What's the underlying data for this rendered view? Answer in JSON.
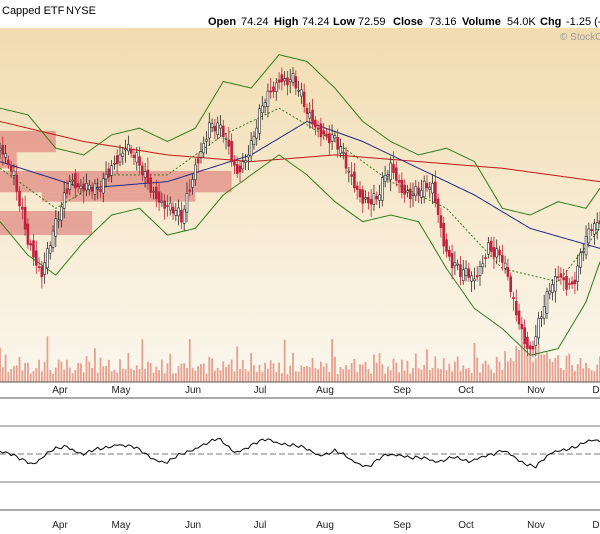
{
  "header": {
    "name": "Capped ETF",
    "exchange": "NYSE",
    "open_label": "Open",
    "open": "74.24",
    "high_label": "High",
    "high": "74.24",
    "low_label": "Low",
    "low": "72.59",
    "close_label": "Close",
    "close": "73.16",
    "volume_label": "Volume",
    "volume": "54.0K",
    "chg_label": "Chg",
    "chg": "-1.25 (-",
    "watermark": "© StockCh"
  },
  "colors": {
    "up": "#2a2a2a",
    "down": "#c0203a",
    "bollinger": "#2e7d1c",
    "ma_dotted": "#2e7d1c",
    "ma_blue": "#1f2a8a",
    "ma_red": "#c01818",
    "volume_zone": "#d96a6a",
    "volume_bar": "#e6a090",
    "indicator_line": "#000000"
  },
  "chart_data": {
    "type": "candlestick",
    "months": [
      "Apr",
      "May",
      "Jun",
      "Jul",
      "Aug",
      "Sep",
      "Oct",
      "Nov",
      "D"
    ],
    "price_series": [
      {
        "day": 0,
        "close": 77.5
      },
      {
        "day": 5,
        "close": 75.0
      },
      {
        "day": 10,
        "close": 71.0
      },
      {
        "day": 15,
        "close": 68.0
      },
      {
        "day": 20,
        "close": 71.5
      },
      {
        "day": 25,
        "close": 75.5
      },
      {
        "day": 30,
        "close": 74.5
      },
      {
        "day": 35,
        "close": 74.0
      },
      {
        "day": 40,
        "close": 76.5
      },
      {
        "day": 45,
        "close": 77.5
      },
      {
        "day": 50,
        "close": 76.0
      },
      {
        "day": 55,
        "close": 74.5
      },
      {
        "day": 60,
        "close": 73.0
      },
      {
        "day": 65,
        "close": 72.0
      },
      {
        "day": 70,
        "close": 76.5
      },
      {
        "day": 75,
        "close": 79.0
      },
      {
        "day": 80,
        "close": 78.5
      },
      {
        "day": 85,
        "close": 76.0
      },
      {
        "day": 90,
        "close": 77.5
      },
      {
        "day": 95,
        "close": 81.0
      },
      {
        "day": 100,
        "close": 83.0
      },
      {
        "day": 105,
        "close": 82.5
      },
      {
        "day": 110,
        "close": 80.0
      },
      {
        "day": 115,
        "close": 79.0
      },
      {
        "day": 120,
        "close": 78.0
      },
      {
        "day": 125,
        "close": 75.5
      },
      {
        "day": 130,
        "close": 74.0
      },
      {
        "day": 135,
        "close": 73.5
      },
      {
        "day": 140,
        "close": 76.0
      },
      {
        "day": 145,
        "close": 74.5
      },
      {
        "day": 150,
        "close": 74.0
      },
      {
        "day": 155,
        "close": 74.5
      },
      {
        "day": 160,
        "close": 70.0
      },
      {
        "day": 165,
        "close": 68.0
      },
      {
        "day": 170,
        "close": 67.5
      },
      {
        "day": 175,
        "close": 70.5
      },
      {
        "day": 180,
        "close": 69.0
      },
      {
        "day": 185,
        "close": 65.0
      },
      {
        "day": 190,
        "close": 62.5
      },
      {
        "day": 195,
        "close": 65.5
      },
      {
        "day": 200,
        "close": 68.0
      },
      {
        "day": 205,
        "close": 67.5
      },
      {
        "day": 210,
        "close": 70.5
      },
      {
        "day": 215,
        "close": 72.0
      }
    ],
    "bollinger_upper": [
      {
        "day": 0,
        "value": 80.5
      },
      {
        "day": 10,
        "value": 80.0
      },
      {
        "day": 20,
        "value": 77.5
      },
      {
        "day": 30,
        "value": 77.0
      },
      {
        "day": 40,
        "value": 78.5
      },
      {
        "day": 50,
        "value": 79.0
      },
      {
        "day": 60,
        "value": 78.0
      },
      {
        "day": 70,
        "value": 79.0
      },
      {
        "day": 80,
        "value": 82.5
      },
      {
        "day": 90,
        "value": 82.0
      },
      {
        "day": 100,
        "value": 84.5
      },
      {
        "day": 110,
        "value": 84.0
      },
      {
        "day": 120,
        "value": 82.0
      },
      {
        "day": 130,
        "value": 79.5
      },
      {
        "day": 140,
        "value": 78.0
      },
      {
        "day": 150,
        "value": 77.0
      },
      {
        "day": 160,
        "value": 77.5
      },
      {
        "day": 170,
        "value": 76.5
      },
      {
        "day": 180,
        "value": 73.0
      },
      {
        "day": 190,
        "value": 72.5
      },
      {
        "day": 200,
        "value": 73.5
      },
      {
        "day": 210,
        "value": 73.0
      },
      {
        "day": 215,
        "value": 74.5
      }
    ],
    "bollinger_lower": [
      {
        "day": 0,
        "value": 72.0
      },
      {
        "day": 10,
        "value": 69.5
      },
      {
        "day": 20,
        "value": 68.0
      },
      {
        "day": 30,
        "value": 70.5
      },
      {
        "day": 40,
        "value": 72.5
      },
      {
        "day": 50,
        "value": 73.0
      },
      {
        "day": 60,
        "value": 71.0
      },
      {
        "day": 70,
        "value": 71.5
      },
      {
        "day": 80,
        "value": 74.0
      },
      {
        "day": 90,
        "value": 75.5
      },
      {
        "day": 100,
        "value": 77.0
      },
      {
        "day": 110,
        "value": 75.5
      },
      {
        "day": 120,
        "value": 73.5
      },
      {
        "day": 130,
        "value": 72.0
      },
      {
        "day": 140,
        "value": 72.5
      },
      {
        "day": 150,
        "value": 72.0
      },
      {
        "day": 160,
        "value": 68.5
      },
      {
        "day": 170,
        "value": 65.5
      },
      {
        "day": 180,
        "value": 64.0
      },
      {
        "day": 190,
        "value": 62.0
      },
      {
        "day": 200,
        "value": 62.5
      },
      {
        "day": 210,
        "value": 66.0
      },
      {
        "day": 215,
        "value": 69.0
      }
    ],
    "ma_dotted": [
      {
        "day": 0,
        "value": 76.0
      },
      {
        "day": 20,
        "value": 73.0
      },
      {
        "day": 40,
        "value": 75.5
      },
      {
        "day": 60,
        "value": 75.5
      },
      {
        "day": 80,
        "value": 78.5
      },
      {
        "day": 100,
        "value": 80.5
      },
      {
        "day": 120,
        "value": 78.0
      },
      {
        "day": 140,
        "value": 75.0
      },
      {
        "day": 160,
        "value": 73.0
      },
      {
        "day": 180,
        "value": 68.5
      },
      {
        "day": 200,
        "value": 67.5
      },
      {
        "day": 215,
        "value": 71.5
      }
    ],
    "ma_blue": [
      {
        "day": 0,
        "value": 76.5
      },
      {
        "day": 30,
        "value": 74.5
      },
      {
        "day": 60,
        "value": 75.0
      },
      {
        "day": 90,
        "value": 77.0
      },
      {
        "day": 110,
        "value": 79.5
      },
      {
        "day": 130,
        "value": 78.0
      },
      {
        "day": 150,
        "value": 76.0
      },
      {
        "day": 170,
        "value": 74.0
      },
      {
        "day": 190,
        "value": 71.5
      },
      {
        "day": 215,
        "value": 70.0
      }
    ],
    "ma_red": [
      {
        "day": 0,
        "value": 79.5
      },
      {
        "day": 30,
        "value": 78.0
      },
      {
        "day": 60,
        "value": 77.0
      },
      {
        "day": 90,
        "value": 76.5
      },
      {
        "day": 120,
        "value": 77.0
      },
      {
        "day": 150,
        "value": 76.5
      },
      {
        "day": 180,
        "value": 76.0
      },
      {
        "day": 215,
        "value": 75.0
      }
    ],
    "volume_zones": [
      {
        "start_day": 0,
        "end_day": 20,
        "price_low": 77.2,
        "price_high": 78.8
      },
      {
        "start_day": 0,
        "end_day": 6,
        "price_low": 76.0,
        "price_high": 77.2
      },
      {
        "start_day": 0,
        "end_day": 83,
        "price_low": 74.2,
        "price_high": 75.8
      },
      {
        "start_day": 15,
        "end_day": 70,
        "price_low": 73.5,
        "price_high": 74.2
      },
      {
        "start_day": 0,
        "end_day": 33,
        "price_low": 71.0,
        "price_high": 72.8
      }
    ],
    "indicator_series": [
      {
        "day": 0,
        "value": 52
      },
      {
        "day": 6,
        "value": 47
      },
      {
        "day": 12,
        "value": 44
      },
      {
        "day": 18,
        "value": 51
      },
      {
        "day": 24,
        "value": 56
      },
      {
        "day": 30,
        "value": 50
      },
      {
        "day": 36,
        "value": 53
      },
      {
        "day": 42,
        "value": 58
      },
      {
        "day": 48,
        "value": 54
      },
      {
        "day": 54,
        "value": 48
      },
      {
        "day": 60,
        "value": 44
      },
      {
        "day": 66,
        "value": 50
      },
      {
        "day": 72,
        "value": 57
      },
      {
        "day": 78,
        "value": 60
      },
      {
        "day": 84,
        "value": 52
      },
      {
        "day": 90,
        "value": 56
      },
      {
        "day": 96,
        "value": 60
      },
      {
        "day": 102,
        "value": 58
      },
      {
        "day": 108,
        "value": 54
      },
      {
        "day": 114,
        "value": 50
      },
      {
        "day": 120,
        "value": 52
      },
      {
        "day": 126,
        "value": 45
      },
      {
        "day": 132,
        "value": 42
      },
      {
        "day": 138,
        "value": 48
      },
      {
        "day": 144,
        "value": 50
      },
      {
        "day": 150,
        "value": 47
      },
      {
        "day": 156,
        "value": 44
      },
      {
        "day": 162,
        "value": 49
      },
      {
        "day": 168,
        "value": 43
      },
      {
        "day": 174,
        "value": 50
      },
      {
        "day": 180,
        "value": 52
      },
      {
        "day": 186,
        "value": 45
      },
      {
        "day": 192,
        "value": 42
      },
      {
        "day": 198,
        "value": 50
      },
      {
        "day": 204,
        "value": 55
      },
      {
        "day": 210,
        "value": 58
      },
      {
        "day": 215,
        "value": 59
      }
    ],
    "indicator_levels": [
      70,
      50,
      30
    ]
  }
}
